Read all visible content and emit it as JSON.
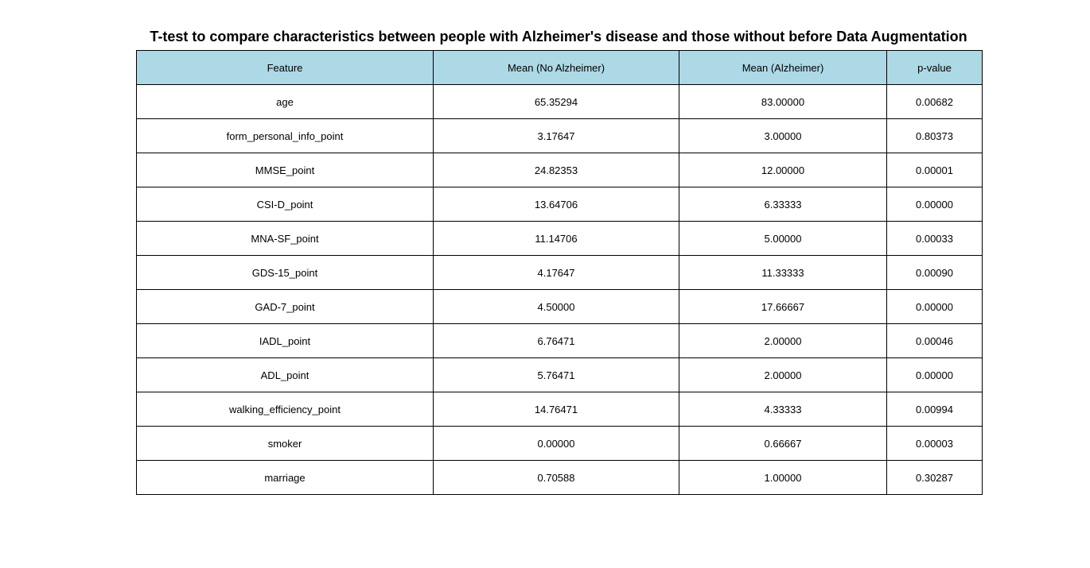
{
  "chart_data": {
    "type": "table",
    "title": "T-test to compare characteristics between people with Alzheimer's disease and those without before Data Augmentation",
    "header_color": "#add8e6",
    "columns": [
      "Feature",
      "Mean (No Alzheimer)",
      "Mean (Alzheimer)",
      "p-value"
    ],
    "rows": [
      [
        "age",
        "65.35294",
        "83.00000",
        "0.00682"
      ],
      [
        "form_personal_info_point",
        "3.17647",
        "3.00000",
        "0.80373"
      ],
      [
        "MMSE_point",
        "24.82353",
        "12.00000",
        "0.00001"
      ],
      [
        "CSI-D_point",
        "13.64706",
        "6.33333",
        "0.00000"
      ],
      [
        "MNA-SF_point",
        "11.14706",
        "5.00000",
        "0.00033"
      ],
      [
        "GDS-15_point",
        "4.17647",
        "11.33333",
        "0.00090"
      ],
      [
        "GAD-7_point",
        "4.50000",
        "17.66667",
        "0.00000"
      ],
      [
        "IADL_point",
        "6.76471",
        "2.00000",
        "0.00046"
      ],
      [
        "ADL_point",
        "5.76471",
        "2.00000",
        "0.00000"
      ],
      [
        "walking_efficiency_point",
        "14.76471",
        "4.33333",
        "0.00994"
      ],
      [
        "smoker",
        "0.00000",
        "0.66667",
        "0.00003"
      ],
      [
        "marriage",
        "0.70588",
        "1.00000",
        "0.30287"
      ]
    ]
  }
}
